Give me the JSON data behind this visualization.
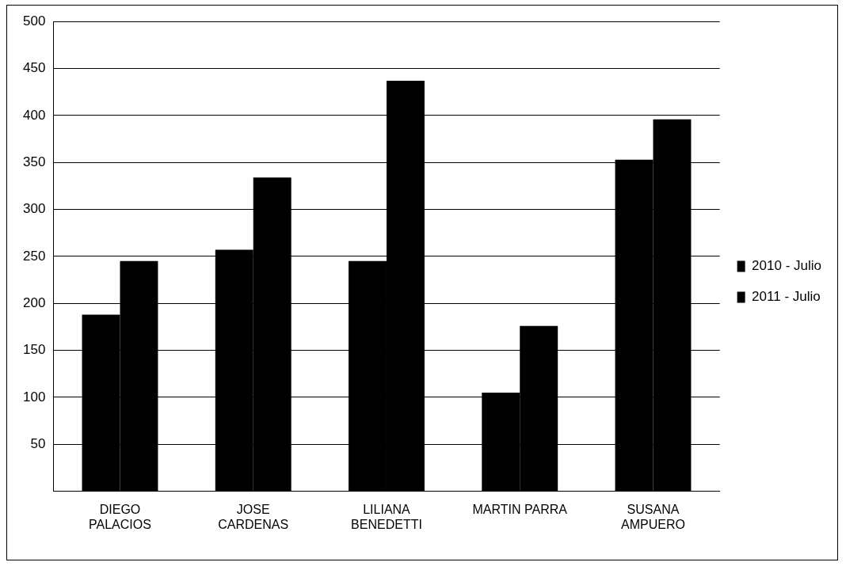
{
  "chart_data": {
    "type": "bar",
    "categories": [
      "DIEGO PALACIOS",
      "JOSE CARDENAS",
      "LILIANA BENEDETTI",
      "MARTIN PARRA",
      "SUSANA AMPUERO"
    ],
    "series": [
      {
        "name": "2010 - Julio",
        "color": "#000000",
        "values": [
          188,
          257,
          245,
          105,
          353
        ]
      },
      {
        "name": "2011 - Julio",
        "color": "#000000",
        "values": [
          245,
          334,
          437,
          176,
          396
        ]
      }
    ],
    "ylim": [
      0,
      500
    ],
    "yticks": [
      {
        "value": 0,
        "label": null
      },
      50,
      100,
      150,
      200,
      250,
      300,
      350,
      400,
      450,
      500
    ],
    "grid": "y",
    "legend": "right"
  }
}
